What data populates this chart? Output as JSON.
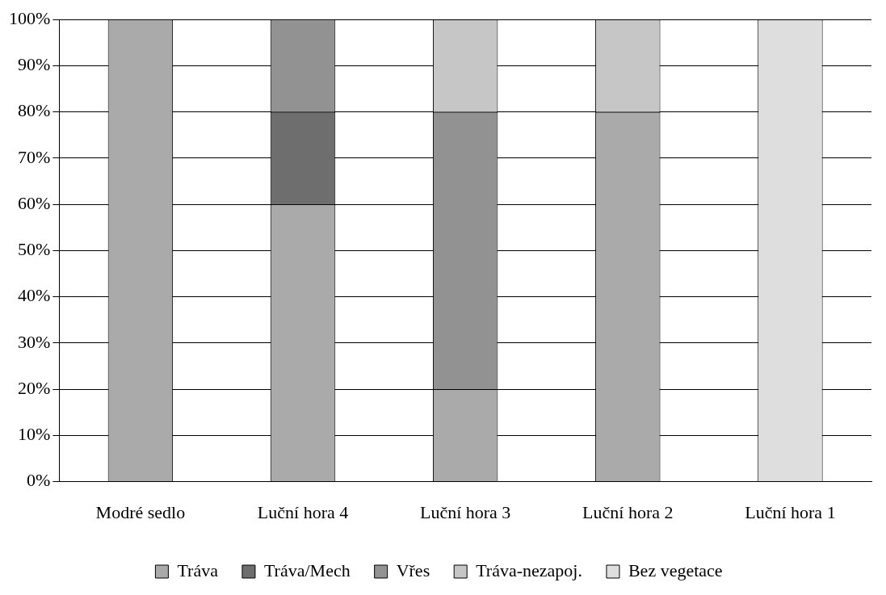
{
  "chart_data": {
    "type": "bar",
    "stacked": true,
    "categories": [
      "Modré sedlo",
      "Luční hora 4",
      "Luční hora 3",
      "Luční hora 2",
      "Luční hora 1"
    ],
    "series": [
      {
        "name": "Tráva",
        "color": "#aaaaaa",
        "values": [
          100,
          60,
          20,
          80,
          0
        ]
      },
      {
        "name": "Tráva/Mech",
        "color": "#6e6e6e",
        "values": [
          0,
          20,
          0,
          0,
          0
        ]
      },
      {
        "name": "Vřes",
        "color": "#929292",
        "values": [
          0,
          20,
          60,
          0,
          0
        ]
      },
      {
        "name": "Tráva-nezapoj.",
        "color": "#c6c6c6",
        "values": [
          0,
          0,
          20,
          20,
          0
        ]
      },
      {
        "name": "Bez vegetace",
        "color": "#dedede",
        "values": [
          0,
          0,
          0,
          0,
          100
        ]
      }
    ],
    "ylim": [
      0,
      100
    ],
    "yticks": [
      {
        "value": 0,
        "label": "0%"
      },
      {
        "value": 10,
        "label": "10%"
      },
      {
        "value": 20,
        "label": "20%"
      },
      {
        "value": 30,
        "label": "30%"
      },
      {
        "value": 40,
        "label": "40%"
      },
      {
        "value": 50,
        "label": "50%"
      },
      {
        "value": 60,
        "label": "60%"
      },
      {
        "value": 70,
        "label": "70%"
      },
      {
        "value": 80,
        "label": "80%"
      },
      {
        "value": 90,
        "label": "90%"
      },
      {
        "value": 100,
        "label": "100%"
      }
    ],
    "grid": "y",
    "legend": "bottom"
  }
}
